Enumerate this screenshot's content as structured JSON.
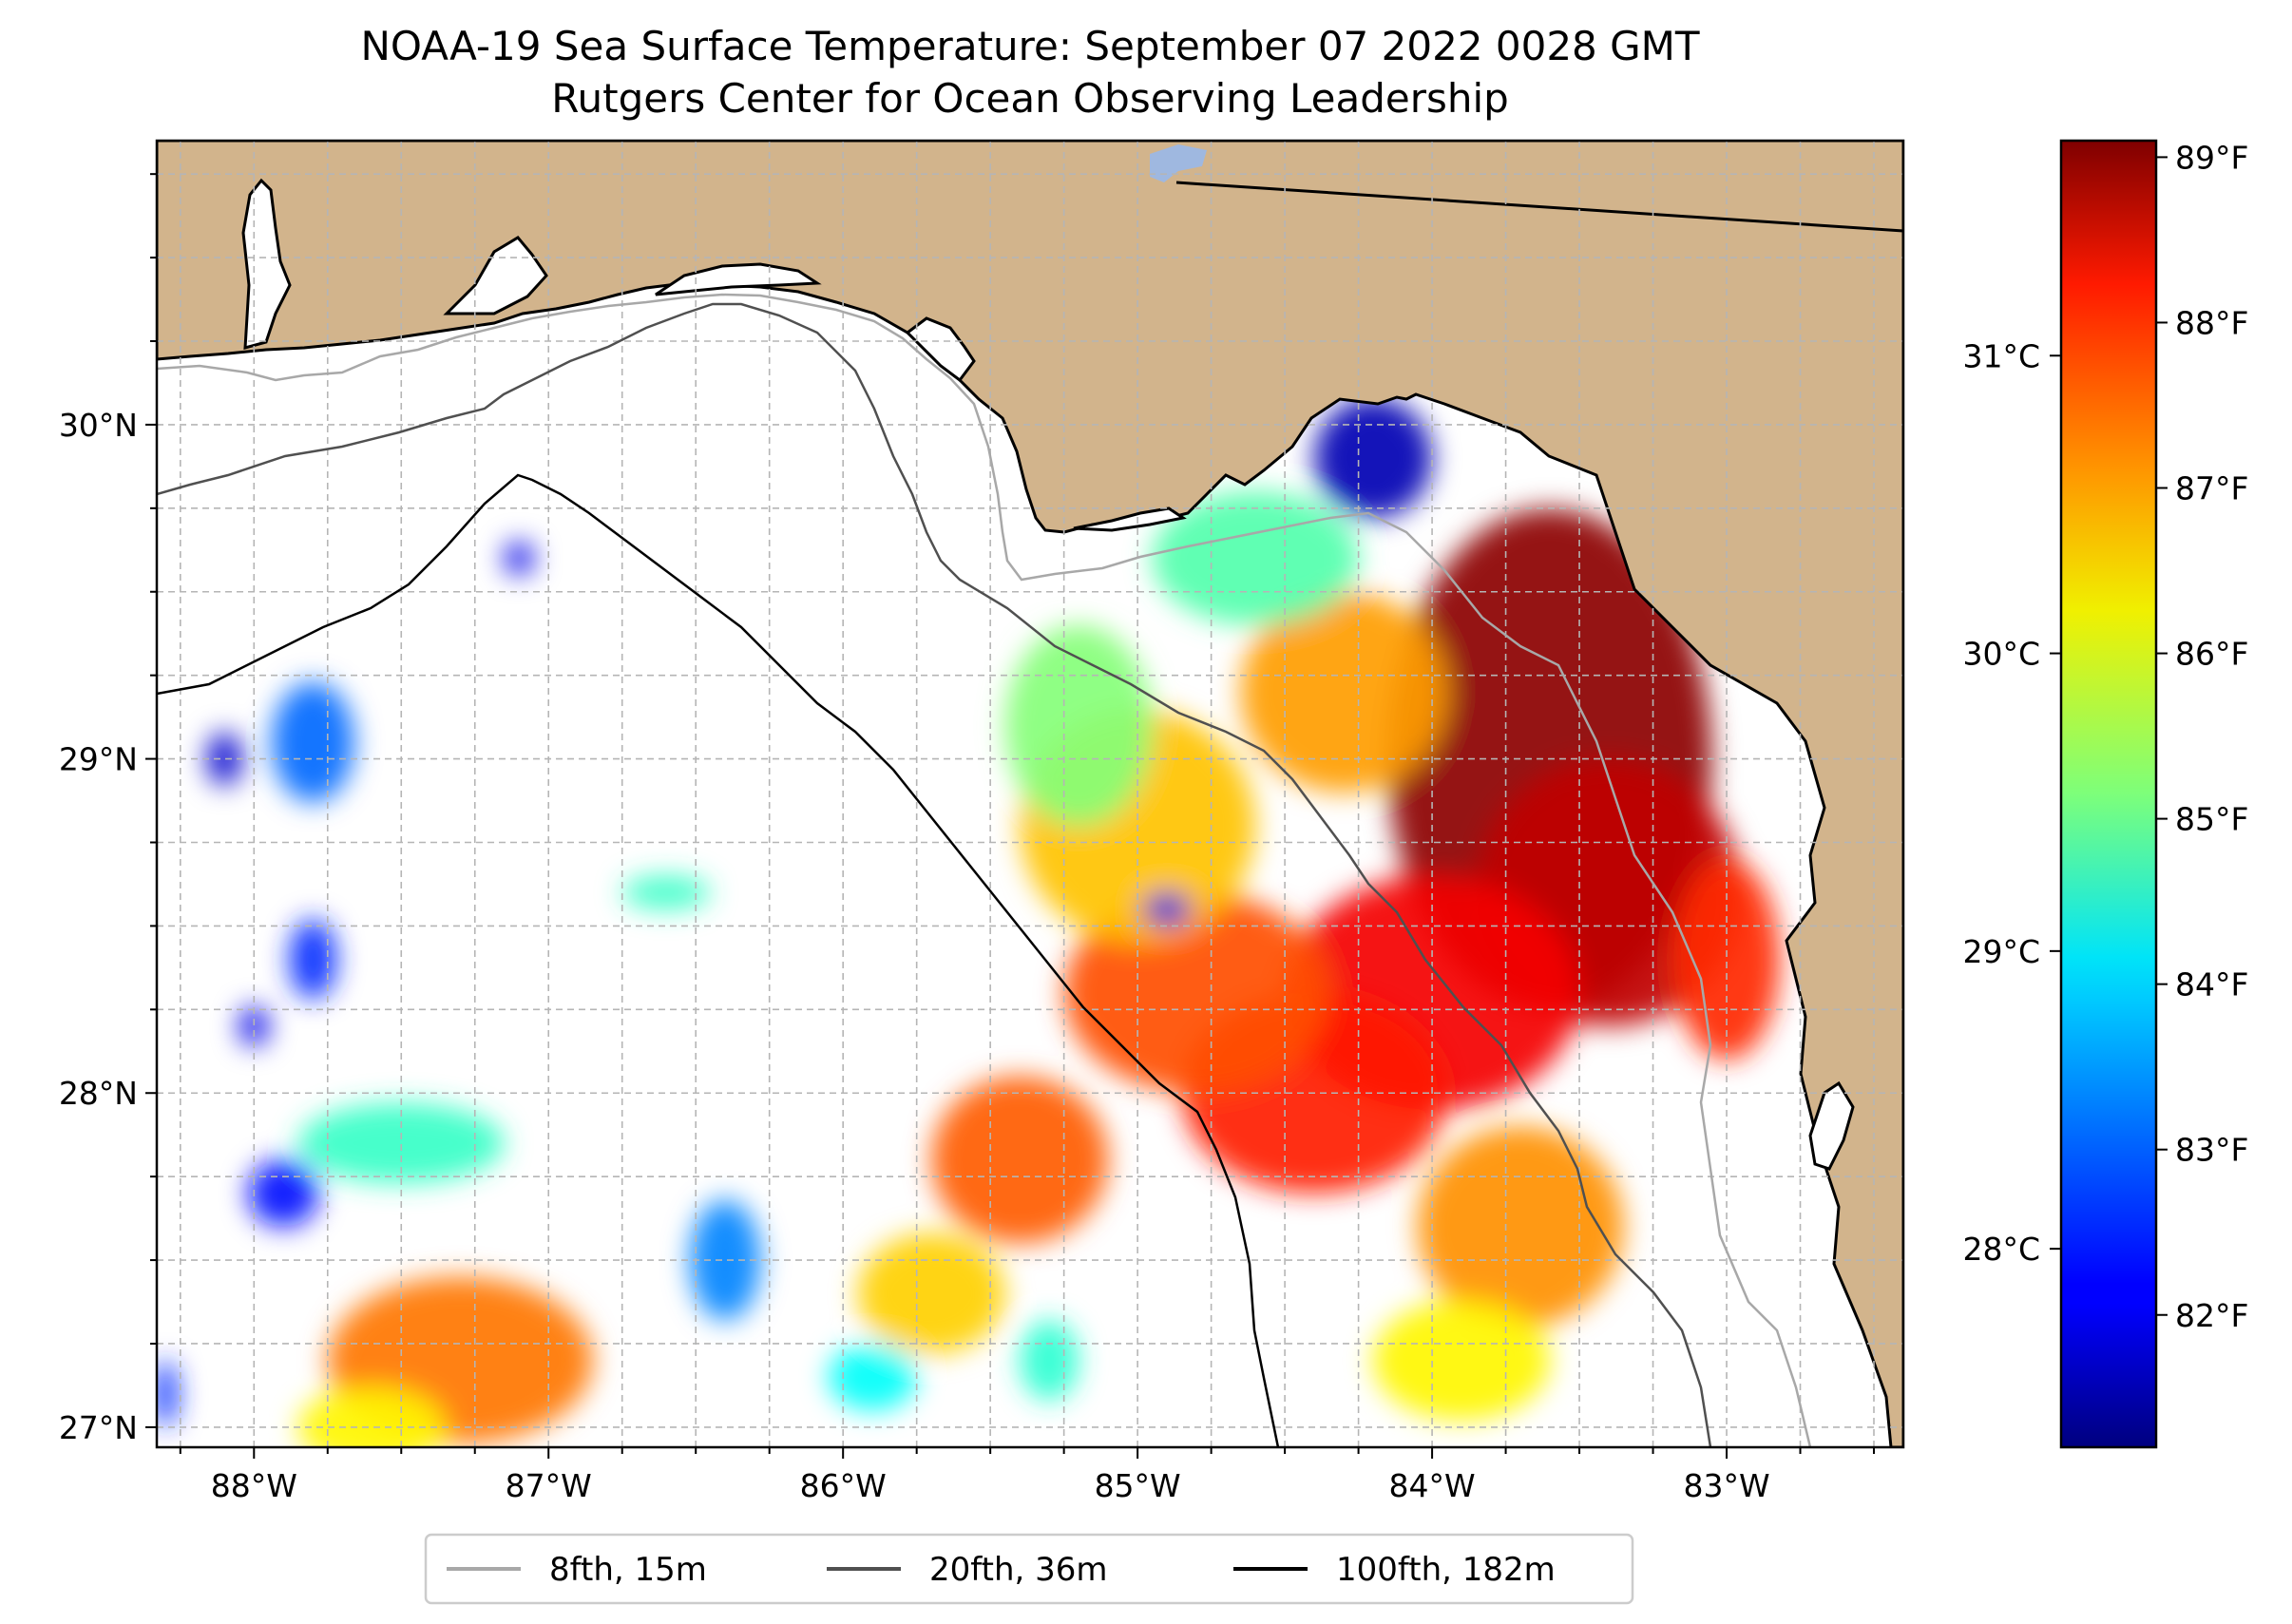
{
  "title": {
    "line1": "NOAA-19 Sea Surface Temperature: September 07 2022 0028 GMT",
    "line2": "Rutgers Center for Ocean Observing Leadership"
  },
  "colors": {
    "land": "#d2b48c",
    "lake": "#9fb8e0",
    "coast": "#000000",
    "grid": "#b0b0b0",
    "contour_8fth": "#a8a8a8",
    "contour_20fth": "#505050",
    "contour_100fth": "#000000",
    "colormap": "jet"
  },
  "chart_data": {
    "type": "heatmap",
    "projection": "plate-carree",
    "extent": {
      "lon": [
        -88.33,
        -82.4
      ],
      "lat": [
        26.94,
        30.85
      ]
    },
    "x_ticks": [
      {
        "value": -88,
        "label": "88°W"
      },
      {
        "value": -87,
        "label": "87°W"
      },
      {
        "value": -86,
        "label": "86°W"
      },
      {
        "value": -85,
        "label": "85°W"
      },
      {
        "value": -84,
        "label": "84°W"
      },
      {
        "value": -83,
        "label": "83°W"
      }
    ],
    "y_ticks": [
      {
        "value": 27,
        "label": "27°N"
      },
      {
        "value": 28,
        "label": "28°N"
      },
      {
        "value": 29,
        "label": "29°N"
      },
      {
        "value": 30,
        "label": "30°N"
      }
    ],
    "grid": true,
    "grid_minor_step_deg": 0.25,
    "colorbar": {
      "position": "right",
      "colormap": "jet",
      "range_f": [
        81.2,
        89.1
      ],
      "f_ticks": [
        {
          "value": 82,
          "label": "82°F"
        },
        {
          "value": 83,
          "label": "83°F"
        },
        {
          "value": 84,
          "label": "84°F"
        },
        {
          "value": 85,
          "label": "85°F"
        },
        {
          "value": 86,
          "label": "86°F"
        },
        {
          "value": 87,
          "label": "87°F"
        },
        {
          "value": 88,
          "label": "88°F"
        },
        {
          "value": 89,
          "label": "89°F"
        }
      ],
      "c_ticks": [
        {
          "value": 28,
          "label": "28°C"
        },
        {
          "value": 29,
          "label": "29°C"
        },
        {
          "value": 30,
          "label": "30°C"
        },
        {
          "value": 31,
          "label": "31°C"
        }
      ]
    },
    "legend": {
      "placement": "bottom-center",
      "entries": [
        {
          "label": "8fth, 15m",
          "color": "#a8a8a8"
        },
        {
          "label": "20fth, 36m",
          "color": "#505050"
        },
        {
          "label": "100fth, 182m",
          "color": "#000000"
        }
      ]
    },
    "sst_patches": [
      {
        "lon": -83.6,
        "lat": 29.0,
        "rx": 0.55,
        "ry": 0.75,
        "f": 89.0
      },
      {
        "lon": -83.4,
        "lat": 28.6,
        "rx": 0.45,
        "ry": 0.4,
        "f": 88.6
      },
      {
        "lon": -84.0,
        "lat": 28.3,
        "rx": 0.5,
        "ry": 0.35,
        "f": 88.2
      },
      {
        "lon": -84.4,
        "lat": 28.0,
        "rx": 0.45,
        "ry": 0.3,
        "f": 87.9
      },
      {
        "lon": -84.8,
        "lat": 28.3,
        "rx": 0.45,
        "ry": 0.3,
        "f": 87.5
      },
      {
        "lon": -85.0,
        "lat": 28.8,
        "rx": 0.4,
        "ry": 0.35,
        "f": 86.6
      },
      {
        "lon": -84.3,
        "lat": 29.2,
        "rx": 0.35,
        "ry": 0.3,
        "f": 86.9
      },
      {
        "lon": -84.6,
        "lat": 29.6,
        "rx": 0.35,
        "ry": 0.2,
        "f": 84.8
      },
      {
        "lon": -85.2,
        "lat": 29.1,
        "rx": 0.25,
        "ry": 0.3,
        "f": 85.2
      },
      {
        "lon": -84.2,
        "lat": 29.9,
        "rx": 0.2,
        "ry": 0.18,
        "f": 81.6
      },
      {
        "lon": -84.9,
        "lat": 28.55,
        "rx": 0.08,
        "ry": 0.05,
        "f": 82.0
      },
      {
        "lon": -83.7,
        "lat": 27.6,
        "rx": 0.35,
        "ry": 0.3,
        "f": 87.0
      },
      {
        "lon": -83.9,
        "lat": 27.2,
        "rx": 0.3,
        "ry": 0.18,
        "f": 86.2
      },
      {
        "lon": -85.4,
        "lat": 27.8,
        "rx": 0.3,
        "ry": 0.25,
        "f": 87.4
      },
      {
        "lon": -85.7,
        "lat": 27.4,
        "rx": 0.25,
        "ry": 0.18,
        "f": 86.5
      },
      {
        "lon": -83.0,
        "lat": 28.4,
        "rx": 0.18,
        "ry": 0.3,
        "f": 87.8
      },
      {
        "lon": -87.3,
        "lat": 27.2,
        "rx": 0.45,
        "ry": 0.25,
        "f": 87.2
      },
      {
        "lon": -87.6,
        "lat": 27.0,
        "rx": 0.25,
        "ry": 0.12,
        "f": 86.2
      },
      {
        "lon": -87.5,
        "lat": 27.85,
        "rx": 0.35,
        "ry": 0.12,
        "f": 84.6
      },
      {
        "lon": -87.9,
        "lat": 27.7,
        "rx": 0.12,
        "ry": 0.1,
        "f": 82.3
      },
      {
        "lon": -86.4,
        "lat": 27.5,
        "rx": 0.12,
        "ry": 0.18,
        "f": 83.2
      },
      {
        "lon": -87.8,
        "lat": 29.05,
        "rx": 0.14,
        "ry": 0.18,
        "f": 83.0
      },
      {
        "lon": -88.1,
        "lat": 29.0,
        "rx": 0.06,
        "ry": 0.08,
        "f": 81.8
      },
      {
        "lon": -87.8,
        "lat": 28.4,
        "rx": 0.08,
        "ry": 0.12,
        "f": 82.5
      },
      {
        "lon": -88.0,
        "lat": 28.2,
        "rx": 0.05,
        "ry": 0.06,
        "f": 82.0
      },
      {
        "lon": -86.6,
        "lat": 28.6,
        "rx": 0.15,
        "ry": 0.05,
        "f": 84.6
      },
      {
        "lon": -85.9,
        "lat": 27.15,
        "rx": 0.15,
        "ry": 0.1,
        "f": 84.2
      },
      {
        "lon": -85.3,
        "lat": 27.2,
        "rx": 0.1,
        "ry": 0.12,
        "f": 84.5
      },
      {
        "lon": -87.1,
        "lat": 29.6,
        "rx": 0.05,
        "ry": 0.05,
        "f": 82.0
      },
      {
        "lon": -88.3,
        "lat": 27.1,
        "rx": 0.04,
        "ry": 0.1,
        "f": 82.5
      }
    ]
  }
}
